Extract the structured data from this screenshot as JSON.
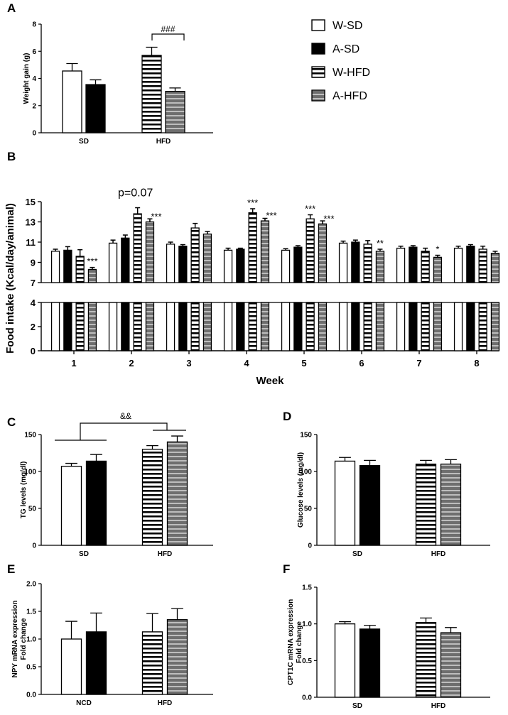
{
  "legend": [
    {
      "name": "W-SD",
      "pattern": "white"
    },
    {
      "name": "A-SD",
      "pattern": "black"
    },
    {
      "name": "W-HFD",
      "pattern": "hstripe"
    },
    {
      "name": "A-HFD",
      "pattern": "grey"
    }
  ],
  "colors": {
    "black": "#000000",
    "white": "#ffffff",
    "stripe": "#000000",
    "grey": "#6e6e6e"
  },
  "panels": {
    "A": {
      "letter": "A"
    },
    "B": {
      "letter": "B"
    },
    "C": {
      "letter": "C"
    },
    "D": {
      "letter": "D"
    },
    "E": {
      "letter": "E"
    },
    "F": {
      "letter": "F"
    }
  },
  "chart_data": [
    {
      "id": "A",
      "type": "bar",
      "categories": [
        "SD",
        "HFD"
      ],
      "ylabel": "Weight gain (g)",
      "xlabel": "",
      "ylim": [
        0,
        8
      ],
      "yticks": [
        "0",
        "2",
        "4",
        "6",
        "8"
      ],
      "series": [
        {
          "name": "W-SD",
          "values": [
            4.55,
            null
          ],
          "errors": [
            0.55,
            null
          ]
        },
        {
          "name": "A-SD",
          "values": [
            3.55,
            null
          ],
          "errors": [
            0.35,
            null
          ]
        },
        {
          "name": "W-HFD",
          "values": [
            null,
            5.7
          ],
          "errors": [
            null,
            0.6
          ]
        },
        {
          "name": "A-HFD",
          "values": [
            null,
            3.05
          ],
          "errors": [
            null,
            0.25
          ]
        }
      ],
      "annotations": [
        {
          "text": "###",
          "between": [
            "W-HFD",
            "A-HFD"
          ]
        }
      ]
    },
    {
      "id": "B",
      "type": "bar",
      "categories": [
        "1",
        "2",
        "3",
        "4",
        "5",
        "6",
        "7",
        "8"
      ],
      "ylabel": "Food intake (Kcal/day/animal)",
      "xlabel": "Week",
      "ylim": [
        0,
        15
      ],
      "axis_break": [
        4,
        7
      ],
      "yticks_lower": [
        "0",
        "2",
        "4"
      ],
      "yticks_upper": [
        "7",
        "9",
        "11",
        "13",
        "15"
      ],
      "series": [
        {
          "name": "W-SD",
          "values": [
            10.1,
            10.9,
            10.8,
            10.2,
            10.2,
            10.9,
            10.4,
            10.4
          ],
          "errors": [
            0.2,
            0.3,
            0.2,
            0.2,
            0.15,
            0.2,
            0.2,
            0.2
          ]
        },
        {
          "name": "A-SD",
          "values": [
            10.2,
            11.4,
            10.6,
            10.3,
            10.5,
            11.0,
            10.5,
            10.6
          ],
          "errors": [
            0.35,
            0.3,
            0.15,
            0.1,
            0.15,
            0.2,
            0.15,
            0.15
          ]
        },
        {
          "name": "W-HFD",
          "values": [
            9.6,
            13.8,
            12.4,
            13.9,
            13.3,
            10.8,
            10.1,
            10.3
          ],
          "errors": [
            0.65,
            0.6,
            0.45,
            0.4,
            0.4,
            0.35,
            0.3,
            0.3
          ]
        },
        {
          "name": "A-HFD",
          "values": [
            8.3,
            13.0,
            11.8,
            13.1,
            12.8,
            10.1,
            9.5,
            9.9
          ],
          "errors": [
            0.2,
            0.3,
            0.25,
            0.25,
            0.3,
            0.2,
            0.2,
            0.2
          ]
        }
      ],
      "annotations": [
        {
          "week": "1",
          "series": "A-HFD",
          "text": "***"
        },
        {
          "week": "2",
          "series": "W-HFD",
          "text": "p=0.07"
        },
        {
          "week": "2",
          "series": "A-HFD",
          "text": "***"
        },
        {
          "week": "4",
          "series": "W-HFD",
          "text": "***"
        },
        {
          "week": "4",
          "series": "A-HFD",
          "text": "***"
        },
        {
          "week": "5",
          "series": "W-HFD",
          "text": "***"
        },
        {
          "week": "5",
          "series": "A-HFD",
          "text": "***"
        },
        {
          "week": "6",
          "series": "A-HFD",
          "text": "**"
        },
        {
          "week": "7",
          "series": "A-HFD",
          "text": "*"
        }
      ]
    },
    {
      "id": "C",
      "type": "bar",
      "categories": [
        "SD",
        "HFD"
      ],
      "ylabel": "TG levels (mg/dl)",
      "xlabel": "",
      "ylim": [
        0,
        150
      ],
      "yticks": [
        "0",
        "50",
        "100",
        "150"
      ],
      "series": [
        {
          "name": "W-SD",
          "values": [
            107,
            null
          ],
          "errors": [
            4,
            null
          ]
        },
        {
          "name": "A-SD",
          "values": [
            114,
            null
          ],
          "errors": [
            9,
            null
          ]
        },
        {
          "name": "W-HFD",
          "values": [
            null,
            130
          ],
          "errors": [
            null,
            5
          ]
        },
        {
          "name": "A-HFD",
          "values": [
            null,
            140
          ],
          "errors": [
            null,
            8
          ]
        }
      ],
      "annotations": [
        {
          "text": "&&",
          "between": [
            "SD",
            "HFD"
          ]
        }
      ]
    },
    {
      "id": "D",
      "type": "bar",
      "categories": [
        "SD",
        "HFD"
      ],
      "ylabel": "Glucose levels (mg/dl)",
      "xlabel": "",
      "ylim": [
        0,
        150
      ],
      "yticks": [
        "0",
        "50",
        "100",
        "150"
      ],
      "series": [
        {
          "name": "W-SD",
          "values": [
            114,
            null
          ],
          "errors": [
            5,
            null
          ]
        },
        {
          "name": "A-SD",
          "values": [
            108,
            null
          ],
          "errors": [
            7,
            null
          ]
        },
        {
          "name": "W-HFD",
          "values": [
            null,
            110
          ],
          "errors": [
            null,
            5
          ]
        },
        {
          "name": "A-HFD",
          "values": [
            null,
            110
          ],
          "errors": [
            null,
            6
          ]
        }
      ]
    },
    {
      "id": "E",
      "type": "bar",
      "categories": [
        "NCD",
        "HFD"
      ],
      "ylabel": "NPY mRNA expression\nFold change",
      "xlabel": "",
      "ylim": [
        0,
        2.0
      ],
      "yticks": [
        "0.0",
        "0.5",
        "1.0",
        "1.5",
        "2.0"
      ],
      "series": [
        {
          "name": "W-SD",
          "values": [
            1.0,
            null
          ],
          "errors": [
            0.32,
            null
          ]
        },
        {
          "name": "A-SD",
          "values": [
            1.13,
            null
          ],
          "errors": [
            0.34,
            null
          ]
        },
        {
          "name": "W-HFD",
          "values": [
            null,
            1.13
          ],
          "errors": [
            null,
            0.33
          ]
        },
        {
          "name": "A-HFD",
          "values": [
            null,
            1.35
          ],
          "errors": [
            null,
            0.2
          ]
        }
      ]
    },
    {
      "id": "F",
      "type": "bar",
      "categories": [
        "SD",
        "HFD"
      ],
      "ylabel": "CPT1C mRNA expression\nFold change",
      "xlabel": "",
      "ylim": [
        0,
        1.5
      ],
      "yticks": [
        "0.0",
        "0.5",
        "1.0",
        "1.5"
      ],
      "series": [
        {
          "name": "W-SD",
          "values": [
            1.0,
            null
          ],
          "errors": [
            0.03,
            null
          ]
        },
        {
          "name": "A-SD",
          "values": [
            0.93,
            null
          ],
          "errors": [
            0.05,
            null
          ]
        },
        {
          "name": "W-HFD",
          "values": [
            null,
            1.02
          ],
          "errors": [
            null,
            0.06
          ]
        },
        {
          "name": "A-HFD",
          "values": [
            null,
            0.88
          ],
          "errors": [
            null,
            0.07
          ]
        }
      ]
    }
  ]
}
